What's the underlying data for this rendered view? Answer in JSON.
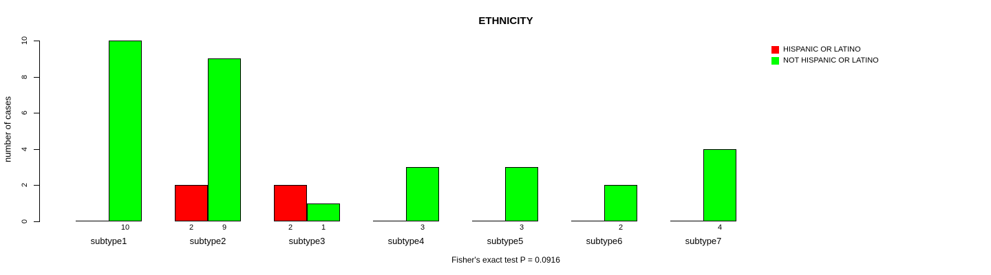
{
  "chart_data": {
    "type": "bar",
    "title": "ETHNICITY",
    "xlabel": "",
    "ylabel": "number of cases",
    "annotation": "Fisher's exact test P = 0.0916",
    "categories": [
      "subtype1",
      "subtype2",
      "subtype3",
      "subtype4",
      "subtype5",
      "subtype6",
      "subtype7"
    ],
    "series": [
      {
        "name": "HISPANIC OR LATINO",
        "color": "#ff0000",
        "values": [
          0,
          2,
          2,
          0,
          0,
          0,
          0
        ]
      },
      {
        "name": "NOT HISPANIC OR LATINO",
        "color": "#00ff00",
        "values": [
          10,
          9,
          1,
          3,
          3,
          2,
          4
        ]
      }
    ],
    "yticks": [
      0,
      2,
      4,
      6,
      8,
      10
    ],
    "ylim": [
      0,
      10
    ],
    "grid": false,
    "legend_position": "top-right",
    "bar_value_labels": "shown under each bar when value is nonzero",
    "bar_border_color": "#000000",
    "background_color": "#ffffff"
  }
}
